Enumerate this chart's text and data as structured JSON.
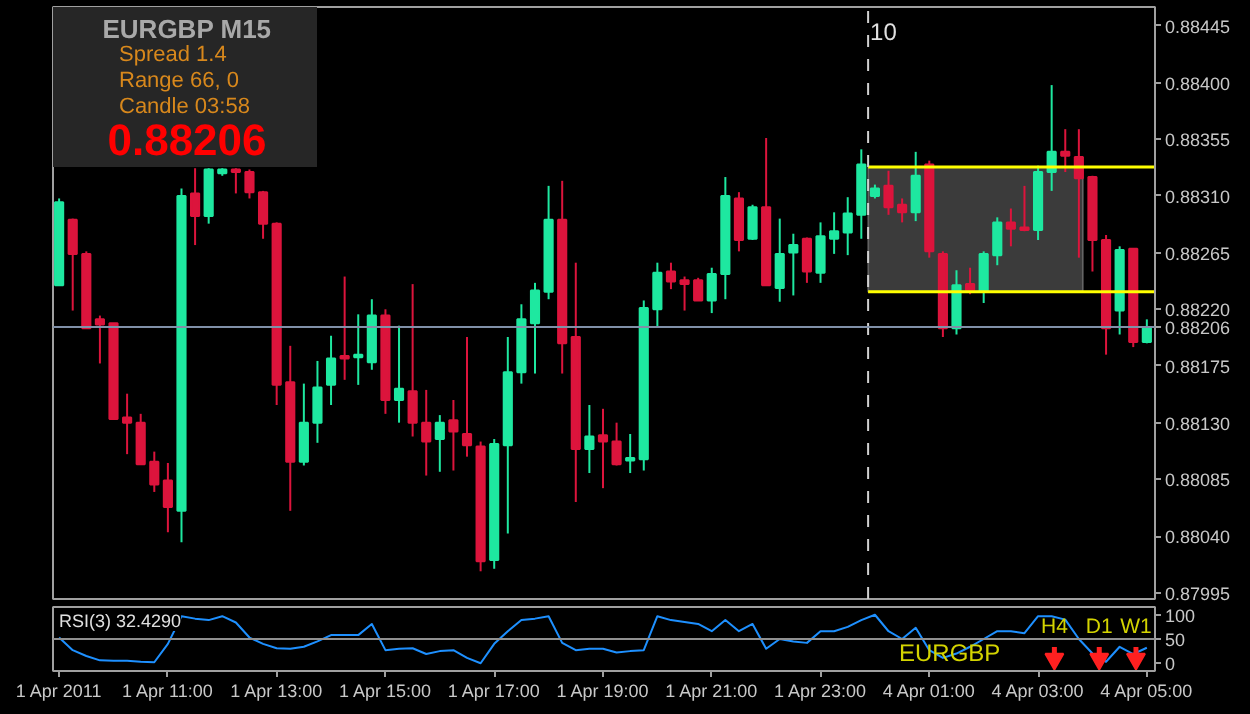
{
  "chart_data": [
    {
      "type": "candlestick",
      "ohlc": [
        [
          0.88239,
          0.88308,
          0.88239,
          0.88305
        ],
        [
          0.88291,
          0.88292,
          0.88219,
          0.88264
        ],
        [
          0.88264,
          0.88266,
          0.88205,
          0.88205
        ],
        [
          0.88212,
          0.88215,
          0.88177,
          0.88208
        ],
        [
          0.88209,
          0.88209,
          0.88133,
          0.88133
        ],
        [
          0.88134,
          0.88153,
          0.88105,
          0.8813
        ],
        [
          0.8813,
          0.88137,
          0.88097,
          0.88097
        ],
        [
          0.88099,
          0.88107,
          0.88075,
          0.88081
        ],
        [
          0.88084,
          0.88098,
          0.88043,
          0.88063
        ],
        [
          0.8806,
          0.88316,
          0.88035,
          0.8831
        ],
        [
          0.88312,
          0.88332,
          0.88271,
          0.88294
        ],
        [
          0.88294,
          0.88332,
          0.88288,
          0.88331
        ],
        [
          0.88328,
          0.88332,
          0.88326,
          0.88331
        ],
        [
          0.88331,
          0.88332,
          0.88312,
          0.88329
        ],
        [
          0.88329,
          0.88331,
          0.88308,
          0.88313
        ],
        [
          0.88313,
          0.88314,
          0.88276,
          0.88288
        ],
        [
          0.88288,
          0.88289,
          0.88144,
          0.8816
        ],
        [
          0.88162,
          0.88191,
          0.8806,
          0.88099
        ],
        [
          0.88099,
          0.88161,
          0.88096,
          0.8813
        ],
        [
          0.8813,
          0.88179,
          0.88114,
          0.88158
        ],
        [
          0.8816,
          0.88199,
          0.88144,
          0.88181
        ],
        [
          0.88183,
          0.88246,
          0.88164,
          0.88181
        ],
        [
          0.88182,
          0.88216,
          0.8816,
          0.88184
        ],
        [
          0.88178,
          0.88228,
          0.88172,
          0.88215
        ],
        [
          0.88215,
          0.8822,
          0.88137,
          0.88148
        ],
        [
          0.88148,
          0.88207,
          0.8813,
          0.88157
        ],
        [
          0.88155,
          0.8824,
          0.88119,
          0.8813
        ],
        [
          0.8813,
          0.88156,
          0.88088,
          0.88115
        ],
        [
          0.88117,
          0.88136,
          0.88091,
          0.8813
        ],
        [
          0.88132,
          0.88148,
          0.88092,
          0.88123
        ],
        [
          0.88121,
          0.88198,
          0.88103,
          0.88112
        ],
        [
          0.88111,
          0.88115,
          0.88012,
          0.8802
        ],
        [
          0.88021,
          0.88117,
          0.88014,
          0.88113
        ],
        [
          0.88112,
          0.88198,
          0.88042,
          0.8817
        ],
        [
          0.8817,
          0.88224,
          0.88161,
          0.88212
        ],
        [
          0.88209,
          0.88241,
          0.88169,
          0.88235
        ],
        [
          0.88234,
          0.88318,
          0.88228,
          0.88291
        ],
        [
          0.88291,
          0.88322,
          0.88169,
          0.88193
        ],
        [
          0.88198,
          0.88257,
          0.88067,
          0.88109
        ],
        [
          0.88109,
          0.88144,
          0.8809,
          0.88119
        ],
        [
          0.8812,
          0.88141,
          0.88078,
          0.88115
        ],
        [
          0.88115,
          0.8813,
          0.88096,
          0.88097
        ],
        [
          0.881,
          0.88121,
          0.8809,
          0.88102
        ],
        [
          0.88101,
          0.88227,
          0.88092,
          0.88221
        ],
        [
          0.8822,
          0.88257,
          0.88206,
          0.88249
        ],
        [
          0.8825,
          0.88257,
          0.88236,
          0.88242
        ],
        [
          0.88243,
          0.88246,
          0.88219,
          0.8824
        ],
        [
          0.88243,
          0.88245,
          0.88227,
          0.88227
        ],
        [
          0.88227,
          0.88253,
          0.88217,
          0.88248
        ],
        [
          0.88248,
          0.88325,
          0.88228,
          0.8831
        ],
        [
          0.88308,
          0.88313,
          0.88266,
          0.88275
        ],
        [
          0.88276,
          0.88303,
          0.88275,
          0.88301
        ],
        [
          0.88301,
          0.88356,
          0.88239,
          0.88239
        ],
        [
          0.88237,
          0.88292,
          0.88226,
          0.88264
        ],
        [
          0.88265,
          0.8828,
          0.88231,
          0.88271
        ],
        [
          0.88276,
          0.88277,
          0.88241,
          0.8825
        ],
        [
          0.88249,
          0.88289,
          0.88241,
          0.88278
        ],
        [
          0.88276,
          0.88297,
          0.88264,
          0.88282
        ],
        [
          0.88281,
          0.88309,
          0.88263,
          0.88296
        ],
        [
          0.88295,
          0.88347,
          0.88276,
          0.88335
        ],
        [
          0.8831,
          0.88319,
          0.88308,
          0.88316
        ],
        [
          0.88318,
          0.8833,
          0.88295,
          0.88301
        ],
        [
          0.88303,
          0.88308,
          0.88289,
          0.88297
        ],
        [
          0.88297,
          0.88345,
          0.8829,
          0.88326
        ],
        [
          0.88335,
          0.88338,
          0.88261,
          0.88266
        ],
        [
          0.88264,
          0.88266,
          0.88198,
          0.88205
        ],
        [
          0.88205,
          0.88251,
          0.882,
          0.88239
        ],
        [
          0.8824,
          0.88253,
          0.88232,
          0.88235
        ],
        [
          0.88234,
          0.88266,
          0.88225,
          0.88264
        ],
        [
          0.88263,
          0.88293,
          0.88255,
          0.88289
        ],
        [
          0.88289,
          0.883,
          0.8827,
          0.88284
        ],
        [
          0.88285,
          0.88318,
          0.88282,
          0.88283
        ],
        [
          0.88283,
          0.88334,
          0.88275,
          0.88329
        ],
        [
          0.88329,
          0.88398,
          0.88314,
          0.88345
        ],
        [
          0.88345,
          0.88363,
          0.88329,
          0.88342
        ],
        [
          0.88341,
          0.88363,
          0.88261,
          0.88324
        ],
        [
          0.88325,
          0.88326,
          0.8825,
          0.88275
        ],
        [
          0.88275,
          0.88279,
          0.88184,
          0.88205
        ],
        [
          0.88219,
          0.8827,
          0.882,
          0.88267
        ],
        [
          0.88268,
          0.88268,
          0.8819,
          0.88194
        ],
        [
          0.88194,
          0.88212,
          0.88193,
          0.88206
        ]
      ],
      "colors": [
        "#1ee8a0",
        "#dc143c",
        "#dc143c",
        "#dc143c",
        "#dc143c",
        "#dc143c",
        "#dc143c",
        "#dc143c",
        "#dc143c",
        "#1ee8a0",
        "#dc143c",
        "#1ee8a0",
        "#1ee8a0",
        "#dc143c",
        "#dc143c",
        "#dc143c",
        "#dc143c",
        "#dc143c",
        "#1ee8a0",
        "#1ee8a0",
        "#1ee8a0",
        "#dc143c",
        "#1ee8a0",
        "#1ee8a0",
        "#dc143c",
        "#1ee8a0",
        "#dc143c",
        "#dc143c",
        "#1ee8a0",
        "#dc143c",
        "#dc143c",
        "#dc143c",
        "#1ee8a0",
        "#1ee8a0",
        "#1ee8a0",
        "#1ee8a0",
        "#1ee8a0",
        "#dc143c",
        "#dc143c",
        "#1ee8a0",
        "#dc143c",
        "#dc143c",
        "#1ee8a0",
        "#1ee8a0",
        "#1ee8a0",
        "#dc143c",
        "#dc143c",
        "#dc143c",
        "#1ee8a0",
        "#1ee8a0",
        "#dc143c",
        "#1ee8a0",
        "#dc143c",
        "#1ee8a0",
        "#1ee8a0",
        "#dc143c",
        "#1ee8a0",
        "#1ee8a0",
        "#1ee8a0",
        "#1ee8a0",
        "#1ee8a0",
        "#dc143c",
        "#dc143c",
        "#1ee8a0",
        "#dc143c",
        "#dc143c",
        "#1ee8a0",
        "#dc143c",
        "#1ee8a0",
        "#1ee8a0",
        "#dc143c",
        "#dc143c",
        "#1ee8a0",
        "#1ee8a0",
        "#dc143c",
        "#dc143c",
        "#dc143c",
        "#dc143c",
        "#1ee8a0",
        "#dc143c",
        "#1ee8a0"
      ],
      "ylim": [
        0.8799,
        0.8846
      ],
      "yticks": [
        0.88445,
        {
          "value": 0.884,
          "label": "0.88400"
        },
        0.88355,
        {
          "value": 0.8831,
          "label": "0.88310"
        },
        0.88265,
        {
          "value": 0.8822,
          "label": "0.88220"
        },
        0.88206,
        0.88175,
        {
          "value": 0.8813,
          "label": "0.88130"
        },
        0.88085,
        {
          "value": 0.8804,
          "label": "0.88040"
        },
        0.87995
      ],
      "tick_labels": "y",
      "ref_lines": [
        {
          "axis": "y",
          "value": 0.88206,
          "color": "#8090a8"
        },
        {
          "axis": "y",
          "value": 0.88333,
          "color": "#ffff00"
        },
        {
          "axis": "y",
          "value": 0.88234,
          "color": "#ffff00"
        }
      ],
      "bands": [
        {
          "axis": "y",
          "from": 0.88234,
          "to": 0.88333,
          "color": "#4a4a4a"
        }
      ],
      "annotations": [
        "EURGBP M15",
        "Spread 1.4",
        "Range 66, 0",
        "Candle 03:58",
        "0.88206",
        "10"
      ]
    },
    {
      "type": "line",
      "title": "RSI(3) 32.4290",
      "categories": [
        "1 Apr 2011",
        null,
        null,
        null,
        null,
        null,
        null,
        null,
        "1 Apr 11:00",
        null,
        null,
        null,
        null,
        null,
        null,
        null,
        "1 Apr 13:00",
        null,
        null,
        null,
        null,
        null,
        null,
        null,
        "1 Apr 15:00",
        null,
        null,
        null,
        null,
        null,
        null,
        null,
        "1 Apr 17:00",
        null,
        null,
        null,
        null,
        null,
        null,
        null,
        "1 Apr 19:00",
        null,
        null,
        null,
        null,
        null,
        null,
        null,
        "1 Apr 21:00",
        null,
        null,
        null,
        null,
        null,
        null,
        null,
        "1 Apr 23:00",
        null,
        null,
        null,
        null,
        null,
        null,
        null,
        "4 Apr 01:00",
        null,
        null,
        null,
        null,
        null,
        null,
        null,
        "4 Apr 03:00",
        null,
        null,
        null,
        null,
        null,
        null,
        null,
        "4 Apr 05:00"
      ],
      "values": [
        53,
        27,
        15,
        6,
        5,
        5,
        3,
        2,
        40,
        97,
        92,
        89,
        97,
        84,
        53,
        40,
        31,
        30,
        34,
        45,
        58,
        58,
        58,
        81,
        27,
        30,
        31,
        19,
        25,
        27,
        11,
        0,
        40,
        66,
        89,
        92,
        97,
        42,
        27,
        30,
        30,
        22,
        25,
        27,
        97,
        89,
        85,
        81,
        66,
        89,
        66,
        81,
        30,
        50,
        45,
        42,
        66,
        66,
        75,
        89,
        100,
        66,
        50,
        73,
        27,
        11,
        20,
        34,
        50,
        66,
        66,
        62,
        97,
        97,
        90,
        50,
        20,
        3,
        34,
        19,
        32
      ],
      "color": "#1e90ff",
      "ylim": [
        -16,
        116
      ],
      "yticks": [
        100,
        50,
        0
      ],
      "ref_lines": [
        {
          "axis": "y",
          "value": 50,
          "color": "#909090"
        }
      ],
      "annotations": [
        "EURGBP",
        "H4",
        "D1",
        "W1"
      ]
    }
  ]
}
